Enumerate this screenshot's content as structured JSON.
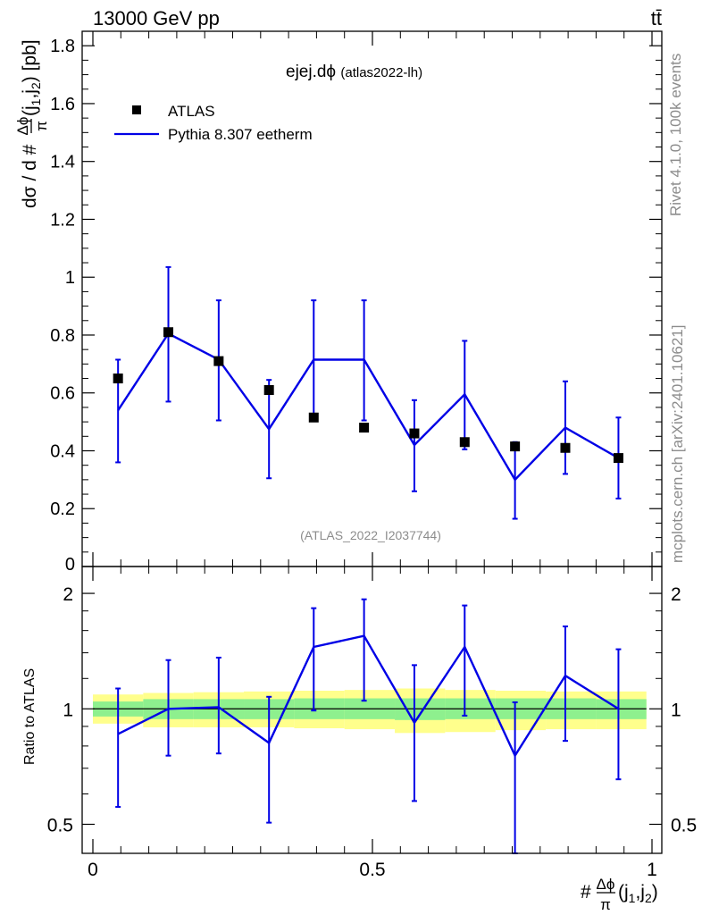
{
  "header": {
    "left": "13000 GeV pp",
    "right": "tt̄"
  },
  "side": {
    "rivet": "Rivet 4.1.0,  100k events",
    "source": "mcplots.cern.ch [arXiv:2401.10621]"
  },
  "main_plot": {
    "title": "ejej.dϕ",
    "title_tag": "(atlas2022-lh)",
    "ylabel": "dσ / d #Δϕ/π(j₁,j₂) [pb]",
    "ylabel_prefix": "dσ / d #",
    "ylabel_frac_num": "Δϕ",
    "ylabel_frac_den": "π",
    "ylabel_args": "(j",
    "ylabel_sub1": "1",
    "ylabel_comma": ",j",
    "ylabel_sub2": "2",
    "ylabel_unit": ") [pb]",
    "watermark": "(ATLAS_2022_I2037744)"
  },
  "ratio_plot": {
    "ylabel": "Ratio to ATLAS"
  },
  "xaxis": {
    "label_prefix": "#",
    "label_frac_num": "Δϕ",
    "label_frac_den": "π",
    "label_args": "(j",
    "label_sub1": "1",
    "label_comma": ",j",
    "label_sub2": "2",
    "label_close": ")"
  },
  "legend": {
    "data_label": "ATLAS",
    "mc_label": "Pythia 8.307 eetherm"
  },
  "colors": {
    "data": "#000000",
    "mc": "#0000e6",
    "band_inner": "#8ef08e",
    "band_outer": "#ffff8c"
  },
  "chart_data": [
    {
      "type": "scatter",
      "title": "ejej.dϕ (atlas2022-lh)",
      "xlabel": "#Δϕ/π(j1,j2)",
      "ylabel": "dσ / d #Δϕ/π(j1,j2) [pb]",
      "xlim": [
        0,
        1
      ],
      "ylim": [
        0,
        1.85
      ],
      "xticks": [
        "0",
        "0.5",
        "1"
      ],
      "yticks": [
        "0",
        "0.2",
        "0.4",
        "0.6",
        "0.8",
        "1",
        "1.2",
        "1.4",
        "1.6",
        "1.8"
      ],
      "bin_edges": [
        0.0,
        0.09,
        0.18,
        0.27,
        0.36,
        0.45,
        0.54,
        0.63,
        0.72,
        0.81,
        0.9,
        0.99
      ],
      "series": [
        {
          "name": "ATLAS",
          "x": [
            0.045,
            0.135,
            0.225,
            0.315,
            0.395,
            0.485,
            0.575,
            0.665,
            0.755,
            0.845,
            0.94
          ],
          "y": [
            0.65,
            0.81,
            0.71,
            0.61,
            0.515,
            0.48,
            0.46,
            0.43,
            0.415,
            0.41,
            0.375
          ]
        },
        {
          "name": "Pythia 8.307 eetherm",
          "x": [
            0.045,
            0.135,
            0.225,
            0.315,
            0.395,
            0.485,
            0.575,
            0.665,
            0.755,
            0.845,
            0.94
          ],
          "y": [
            0.54,
            0.805,
            0.715,
            0.475,
            0.715,
            0.715,
            0.42,
            0.595,
            0.3,
            0.48,
            0.375
          ],
          "err_lo": [
            0.36,
            0.57,
            0.505,
            0.305,
            0.51,
            0.505,
            0.26,
            0.405,
            0.165,
            0.32,
            0.235
          ],
          "err_hi": [
            0.715,
            1.035,
            0.92,
            0.645,
            0.92,
            0.92,
            0.575,
            0.78,
            0.43,
            0.64,
            0.515
          ]
        }
      ]
    },
    {
      "type": "line",
      "title": "Ratio to ATLAS",
      "ylabel": "Ratio to ATLAS",
      "xlim": [
        0,
        1
      ],
      "ylim": [
        0.42,
        2.35
      ],
      "yscale": "log",
      "yticks": [
        "0.5",
        "1",
        "2"
      ],
      "band_edges": [
        0.0,
        0.09,
        0.18,
        0.27,
        0.36,
        0.45,
        0.54,
        0.63,
        0.72,
        0.81,
        0.9,
        0.99
      ],
      "band_inner": [
        [
          0.955,
          1.045
        ],
        [
          0.94,
          1.06
        ],
        [
          0.94,
          1.06
        ],
        [
          0.94,
          1.06
        ],
        [
          0.94,
          1.065
        ],
        [
          0.94,
          1.065
        ],
        [
          0.935,
          1.065
        ],
        [
          0.94,
          1.065
        ],
        [
          0.94,
          1.065
        ],
        [
          0.94,
          1.065
        ],
        [
          0.94,
          1.06
        ]
      ],
      "band_outer": [
        [
          0.915,
          1.09
        ],
        [
          0.895,
          1.1
        ],
        [
          0.895,
          1.105
        ],
        [
          0.895,
          1.11
        ],
        [
          0.89,
          1.115
        ],
        [
          0.885,
          1.12
        ],
        [
          0.865,
          1.13
        ],
        [
          0.87,
          1.12
        ],
        [
          0.88,
          1.115
        ],
        [
          0.885,
          1.11
        ],
        [
          0.885,
          1.11
        ]
      ],
      "series": [
        {
          "name": "Pythia 8.307 eetherm",
          "x": [
            0.045,
            0.135,
            0.225,
            0.315,
            0.395,
            0.485,
            0.575,
            0.665,
            0.755,
            0.845,
            0.94
          ],
          "y": [
            0.86,
            1.0,
            1.01,
            0.815,
            1.45,
            1.55,
            0.92,
            1.45,
            0.755,
            1.22,
            1.0
          ],
          "err_lo": [
            0.555,
            0.755,
            0.765,
            0.505,
            0.99,
            1.05,
            0.575,
            0.96,
            0.42,
            0.825,
            0.655
          ],
          "err_hi": [
            1.13,
            1.34,
            1.36,
            1.075,
            1.83,
            1.93,
            1.3,
            1.86,
            1.04,
            1.64,
            1.43
          ]
        }
      ]
    }
  ]
}
